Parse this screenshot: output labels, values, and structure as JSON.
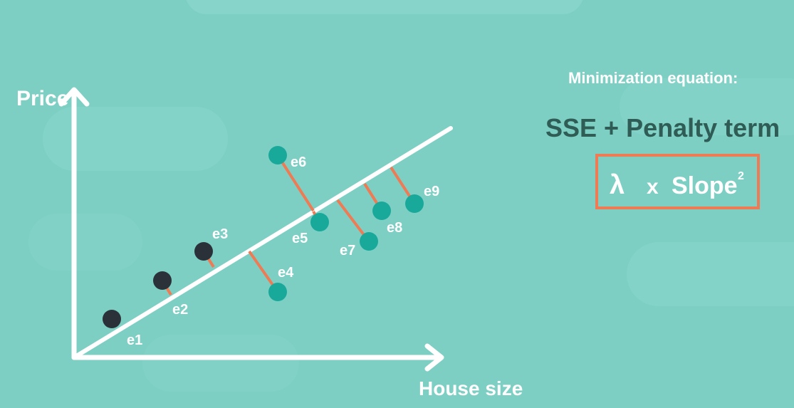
{
  "axes": {
    "y_label": "Price",
    "x_label": "House size"
  },
  "panel": {
    "heading": "Minimization equation:",
    "equation": "SSE + Penalty term",
    "penalty": {
      "lambda": "λ",
      "times": "x",
      "word": "Slope",
      "exponent": "2"
    }
  },
  "points": [
    {
      "label": "e1",
      "kind": "training"
    },
    {
      "label": "e2",
      "kind": "training"
    },
    {
      "label": "e3",
      "kind": "training"
    },
    {
      "label": "e4",
      "kind": "test"
    },
    {
      "label": "e5",
      "kind": "test"
    },
    {
      "label": "e6",
      "kind": "test"
    },
    {
      "label": "e7",
      "kind": "test"
    },
    {
      "label": "e8",
      "kind": "test"
    },
    {
      "label": "e9",
      "kind": "test"
    }
  ],
  "colors": {
    "background": "#7dcfc4",
    "axis": "#ffffff",
    "regression_line": "#ffffff",
    "training_point": "#2b3138",
    "test_point": "#19a99b",
    "residual": "#ef7b55",
    "equation_text": "#2f5c55",
    "penalty_box": "#ef7b55"
  }
}
